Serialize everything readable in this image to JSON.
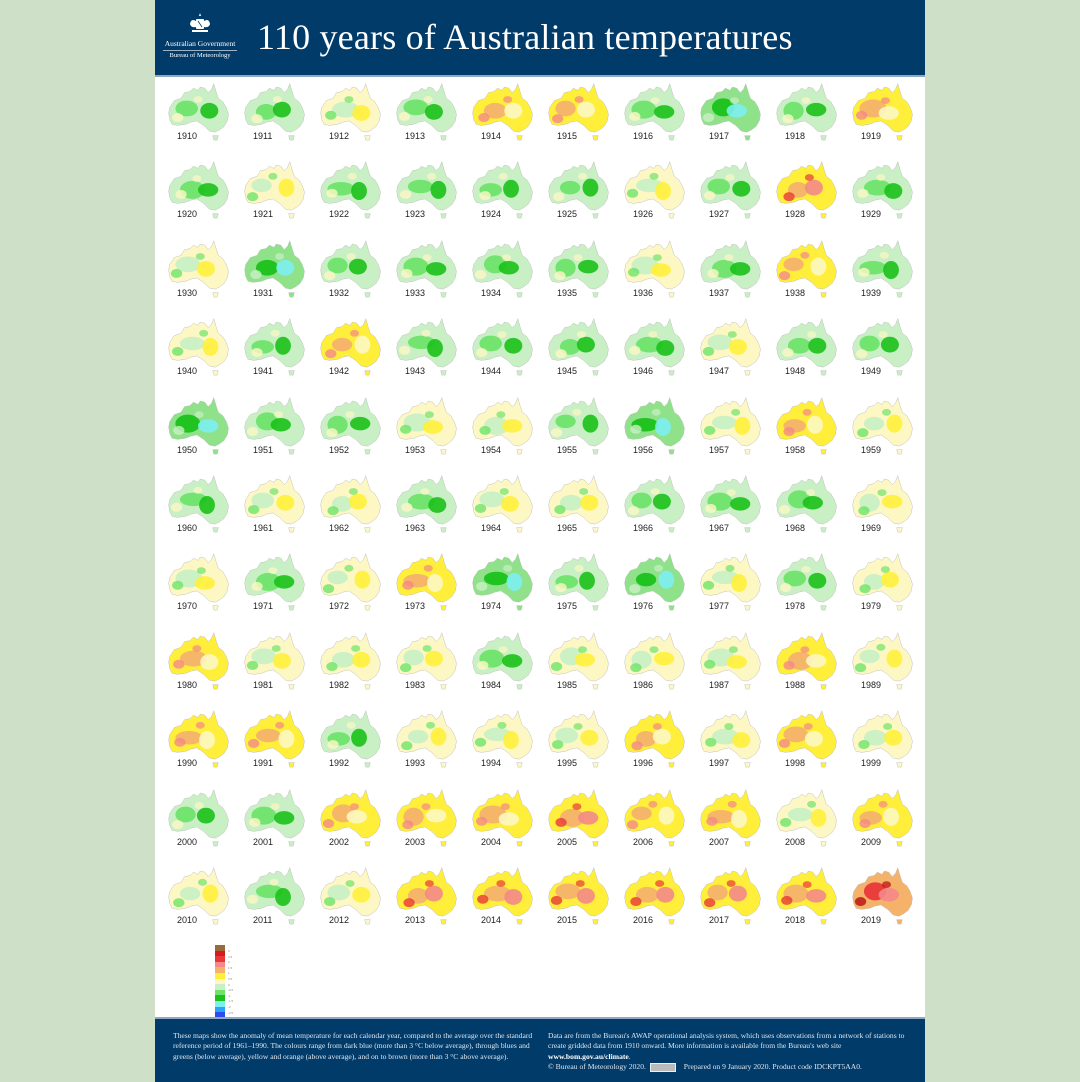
{
  "header": {
    "title": "110 years of Australian temperatures",
    "logo_line1": "Australian Government",
    "logo_line2": "Bureau of Meteorology",
    "crest_icon": "coat-of-arms-icon"
  },
  "colors": {
    "navy": "#003b6a",
    "outer_bg": "#cfe0c9"
  },
  "chart_data": {
    "type": "heatmap",
    "title": "110 years of Australian temperatures",
    "description": "Small-multiple maps of Australia showing annual mean temperature anomaly relative to 1961-1990",
    "grid": {
      "columns": 10,
      "rows": 11
    },
    "legend": {
      "orientation": "vertical",
      "position": "bottom-left",
      "colors": [
        "#9b6a3c",
        "#d7191c",
        "#e8383a",
        "#f4888a",
        "#f5b26b",
        "#ffef3a",
        "#fdf7c4",
        "#c9f0c4",
        "#6ee36a",
        "#1bc11b",
        "#7cf0f0",
        "#2aa6f5",
        "#2b4df0",
        "#0000cc"
      ],
      "labels": [
        "3",
        "2.5",
        "2",
        "1.5",
        "1",
        "0.5",
        "0",
        "-0.5",
        "-1",
        "-1.5",
        "-2",
        "-2.5",
        "-3",
        ""
      ]
    },
    "years": [
      {
        "year": 1910,
        "tone": "cool"
      },
      {
        "year": 1911,
        "tone": "cool"
      },
      {
        "year": 1912,
        "tone": "neutral"
      },
      {
        "year": 1913,
        "tone": "cool"
      },
      {
        "year": 1914,
        "tone": "warm"
      },
      {
        "year": 1915,
        "tone": "warm"
      },
      {
        "year": 1916,
        "tone": "cool"
      },
      {
        "year": 1917,
        "tone": "cold"
      },
      {
        "year": 1918,
        "tone": "cool"
      },
      {
        "year": 1919,
        "tone": "warm"
      },
      {
        "year": 1920,
        "tone": "cool"
      },
      {
        "year": 1921,
        "tone": "neutral"
      },
      {
        "year": 1922,
        "tone": "cool"
      },
      {
        "year": 1923,
        "tone": "cool"
      },
      {
        "year": 1924,
        "tone": "cool"
      },
      {
        "year": 1925,
        "tone": "cool"
      },
      {
        "year": 1926,
        "tone": "neutral"
      },
      {
        "year": 1927,
        "tone": "cool"
      },
      {
        "year": 1928,
        "tone": "hot"
      },
      {
        "year": 1929,
        "tone": "cool"
      },
      {
        "year": 1930,
        "tone": "neutral"
      },
      {
        "year": 1931,
        "tone": "cold"
      },
      {
        "year": 1932,
        "tone": "cool"
      },
      {
        "year": 1933,
        "tone": "cool"
      },
      {
        "year": 1934,
        "tone": "cool"
      },
      {
        "year": 1935,
        "tone": "cool"
      },
      {
        "year": 1936,
        "tone": "neutral"
      },
      {
        "year": 1937,
        "tone": "cool"
      },
      {
        "year": 1938,
        "tone": "warm"
      },
      {
        "year": 1939,
        "tone": "cool"
      },
      {
        "year": 1940,
        "tone": "neutral"
      },
      {
        "year": 1941,
        "tone": "cool"
      },
      {
        "year": 1942,
        "tone": "warm"
      },
      {
        "year": 1943,
        "tone": "cool"
      },
      {
        "year": 1944,
        "tone": "cool"
      },
      {
        "year": 1945,
        "tone": "cool"
      },
      {
        "year": 1946,
        "tone": "cool"
      },
      {
        "year": 1947,
        "tone": "neutral"
      },
      {
        "year": 1948,
        "tone": "cool"
      },
      {
        "year": 1949,
        "tone": "cool"
      },
      {
        "year": 1950,
        "tone": "cold"
      },
      {
        "year": 1951,
        "tone": "cool"
      },
      {
        "year": 1952,
        "tone": "cool"
      },
      {
        "year": 1953,
        "tone": "neutral"
      },
      {
        "year": 1954,
        "tone": "neutral"
      },
      {
        "year": 1955,
        "tone": "cool"
      },
      {
        "year": 1956,
        "tone": "cold"
      },
      {
        "year": 1957,
        "tone": "neutral"
      },
      {
        "year": 1958,
        "tone": "warm"
      },
      {
        "year": 1959,
        "tone": "neutral"
      },
      {
        "year": 1960,
        "tone": "cool"
      },
      {
        "year": 1961,
        "tone": "neutral"
      },
      {
        "year": 1962,
        "tone": "neutral"
      },
      {
        "year": 1963,
        "tone": "cool"
      },
      {
        "year": 1964,
        "tone": "neutral"
      },
      {
        "year": 1965,
        "tone": "neutral"
      },
      {
        "year": 1966,
        "tone": "cool"
      },
      {
        "year": 1967,
        "tone": "cool"
      },
      {
        "year": 1968,
        "tone": "cool"
      },
      {
        "year": 1969,
        "tone": "neutral"
      },
      {
        "year": 1970,
        "tone": "neutral"
      },
      {
        "year": 1971,
        "tone": "cool"
      },
      {
        "year": 1972,
        "tone": "neutral"
      },
      {
        "year": 1973,
        "tone": "warm"
      },
      {
        "year": 1974,
        "tone": "cold"
      },
      {
        "year": 1975,
        "tone": "cool"
      },
      {
        "year": 1976,
        "tone": "cold"
      },
      {
        "year": 1977,
        "tone": "neutral"
      },
      {
        "year": 1978,
        "tone": "cool"
      },
      {
        "year": 1979,
        "tone": "neutral"
      },
      {
        "year": 1980,
        "tone": "warm"
      },
      {
        "year": 1981,
        "tone": "neutral"
      },
      {
        "year": 1982,
        "tone": "neutral"
      },
      {
        "year": 1983,
        "tone": "neutral"
      },
      {
        "year": 1984,
        "tone": "cool"
      },
      {
        "year": 1985,
        "tone": "neutral"
      },
      {
        "year": 1986,
        "tone": "neutral"
      },
      {
        "year": 1987,
        "tone": "neutral"
      },
      {
        "year": 1988,
        "tone": "warm"
      },
      {
        "year": 1989,
        "tone": "neutral"
      },
      {
        "year": 1990,
        "tone": "warm"
      },
      {
        "year": 1991,
        "tone": "warm"
      },
      {
        "year": 1992,
        "tone": "cool"
      },
      {
        "year": 1993,
        "tone": "neutral"
      },
      {
        "year": 1994,
        "tone": "neutral"
      },
      {
        "year": 1995,
        "tone": "neutral"
      },
      {
        "year": 1996,
        "tone": "warm"
      },
      {
        "year": 1997,
        "tone": "neutral"
      },
      {
        "year": 1998,
        "tone": "warm"
      },
      {
        "year": 1999,
        "tone": "neutral"
      },
      {
        "year": 2000,
        "tone": "cool"
      },
      {
        "year": 2001,
        "tone": "cool"
      },
      {
        "year": 2002,
        "tone": "warm"
      },
      {
        "year": 2003,
        "tone": "warm"
      },
      {
        "year": 2004,
        "tone": "warm"
      },
      {
        "year": 2005,
        "tone": "hot"
      },
      {
        "year": 2006,
        "tone": "warm"
      },
      {
        "year": 2007,
        "tone": "warm"
      },
      {
        "year": 2008,
        "tone": "neutral"
      },
      {
        "year": 2009,
        "tone": "warm"
      },
      {
        "year": 2010,
        "tone": "neutral"
      },
      {
        "year": 2011,
        "tone": "cool"
      },
      {
        "year": 2012,
        "tone": "neutral"
      },
      {
        "year": 2013,
        "tone": "hot"
      },
      {
        "year": 2014,
        "tone": "hot"
      },
      {
        "year": 2015,
        "tone": "hot"
      },
      {
        "year": 2016,
        "tone": "hot"
      },
      {
        "year": 2017,
        "tone": "hot"
      },
      {
        "year": 2018,
        "tone": "hot"
      },
      {
        "year": 2019,
        "tone": "hottest"
      }
    ],
    "tone_palettes": {
      "cold": {
        "base": "#8fe28a",
        "b1": "#1bc11b",
        "b2": "#7cf0f0",
        "b3": "#c9f0c4"
      },
      "cool": {
        "base": "#c9f0c4",
        "b1": "#6ee36a",
        "b2": "#1bc11b",
        "b3": "#fdf7c4"
      },
      "neutral": {
        "base": "#fdf7c4",
        "b1": "#c9f0c4",
        "b2": "#ffef3a",
        "b3": "#6ee36a"
      },
      "warm": {
        "base": "#ffef3a",
        "b1": "#f5b26b",
        "b2": "#fdf7c4",
        "b3": "#f4888a"
      },
      "hot": {
        "base": "#ffef3a",
        "b1": "#f5b26b",
        "b2": "#f4888a",
        "b3": "#e8383a"
      },
      "hottest": {
        "base": "#f5b26b",
        "b1": "#e8383a",
        "b2": "#f4888a",
        "b3": "#b50d10"
      }
    }
  },
  "footer": {
    "left_text": "These maps show the anomaly of mean temperature for each calendar year, compared to the average over the standard reference period of 1961–1990. The colours range from dark blue (more than 3 °C below average), through blues and greens (below average), yellow and orange (above average), and on to brown (more than 3 °C above average).",
    "right_text": "Data are from the Bureau's AWAP operational analysis system, which uses observations from a network of stations to create gridded data from 1910 onward. More information is available from the Bureau's web site ",
    "url": "www.bom.gov.au/climate",
    "copyright": "© Bureau of Meteorology 2020.",
    "license_icon": "creative-commons-badge-icon",
    "prepared": "Prepared on 9 January 2020. Product code IDCKPT5AA0."
  }
}
